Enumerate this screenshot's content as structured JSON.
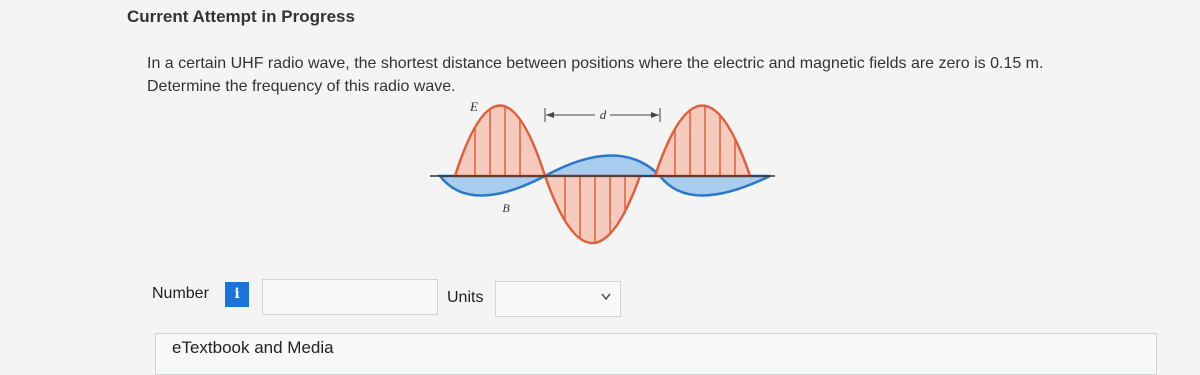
{
  "header": {
    "title": "Current Attempt in Progress"
  },
  "question": {
    "lines": [
      "In a certain UHF radio wave, the shortest distance between positions where the electric and magnetic fields are zero is 0.15 m.",
      "Determine the frequency of this radio wave."
    ]
  },
  "figure": {
    "e_label": "E",
    "d_label": "d",
    "b_label": "B"
  },
  "answer": {
    "number_label": "Number",
    "info_icon": "i",
    "units_label": "Units"
  },
  "resources": {
    "etextbook": "eTextbook and Media"
  }
}
